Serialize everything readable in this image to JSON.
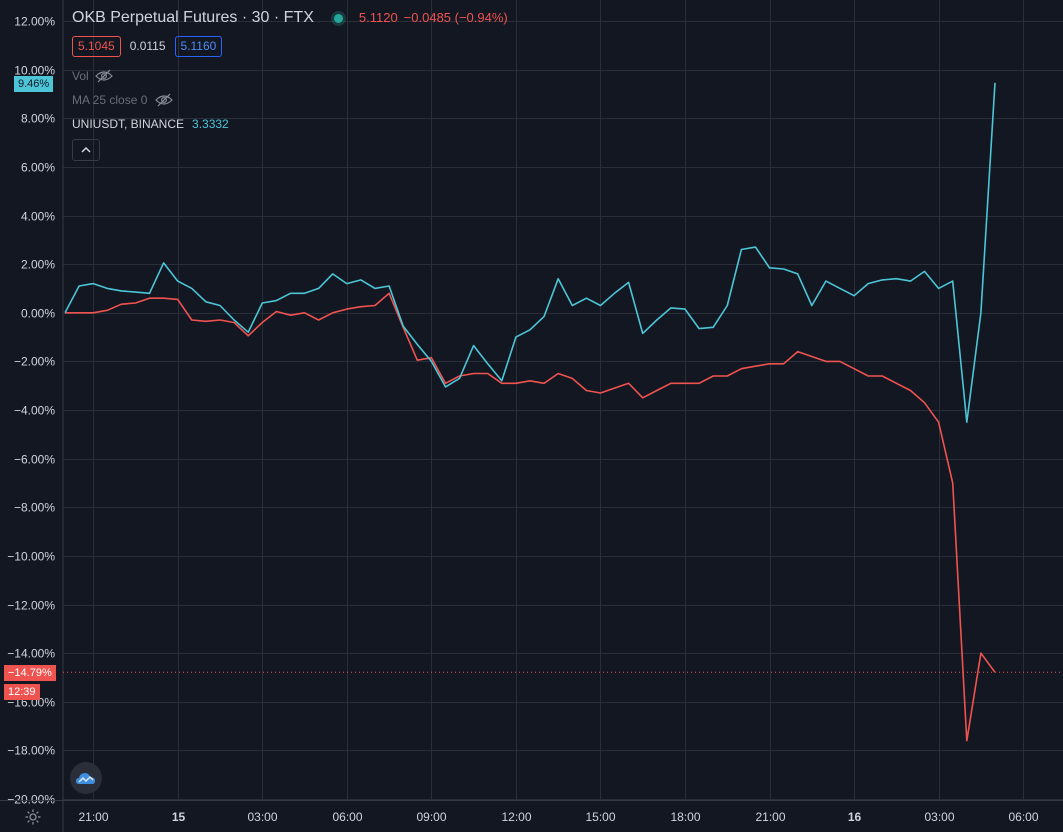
{
  "legend": {
    "title": "OKB Perpetual Futures · 30 · FTX",
    "quote_last": "5.1120",
    "quote_change": "−0.0485 (−0.94%)",
    "bid": "5.1045",
    "spread": "0.0115",
    "ask": "5.1160",
    "indicator_vol": "Vol",
    "indicator_ma": "MA 25 close 0",
    "compare_symbol": "UNIUSDT, BINANCE",
    "compare_value": "3.3332"
  },
  "price_tags": {
    "uni_pct": "9.46%",
    "okb_pct": "−14.79%",
    "countdown": "12:39"
  },
  "colors": {
    "background": "#131722",
    "grid": "#2a2e39",
    "okb": "#ef5350",
    "uni": "#4cc5d6"
  },
  "icons": {
    "status": "green-dot-icon",
    "vol_toggle": "eye-crossed-icon",
    "ma_toggle": "eye-crossed-icon",
    "collapse": "chevron-up-icon",
    "logo": "tradingview-cloud-icon",
    "settings": "gear-icon"
  },
  "chart_data": {
    "type": "line",
    "title": "OKB Perpetual Futures · 30 · FTX",
    "y_unit": "%",
    "ylim": [
      -20,
      12
    ],
    "y_ticks": [
      12,
      10,
      8,
      6,
      4,
      2,
      0,
      -2,
      -4,
      -6,
      -8,
      -10,
      -12,
      -14,
      -16,
      -18,
      -20
    ],
    "y_tick_labels": [
      "12.00%",
      "10.00%",
      "8.00%",
      "6.00%",
      "4.00%",
      "2.00%",
      "0.00%",
      "−2.00%",
      "−4.00%",
      "−6.00%",
      "−8.00%",
      "−10.00%",
      "−12.00%",
      "−14.00%",
      "−16.00%",
      "−18.00%",
      "−20.00%"
    ],
    "x_bar_range": [
      0,
      66
    ],
    "x_ticks": [
      {
        "bar": 2,
        "label": "21:00"
      },
      {
        "bar": 8,
        "label": "15"
      },
      {
        "bar": 14,
        "label": "03:00"
      },
      {
        "bar": 20,
        "label": "06:00"
      },
      {
        "bar": 26,
        "label": "09:00"
      },
      {
        "bar": 32,
        "label": "12:00"
      },
      {
        "bar": 38,
        "label": "15:00"
      },
      {
        "bar": 44,
        "label": "18:00"
      },
      {
        "bar": 50,
        "label": "21:00"
      },
      {
        "bar": 56,
        "label": "16"
      },
      {
        "bar": 62,
        "label": "03:00"
      },
      {
        "bar": 68,
        "label": "06:00"
      }
    ],
    "grid": true,
    "series": [
      {
        "name": "OKB Perpetual Futures",
        "color": "#ef5350",
        "values": [
          0.0,
          0.0,
          0.0,
          0.1,
          0.35,
          0.4,
          0.6,
          0.6,
          0.55,
          -0.3,
          -0.35,
          -0.3,
          -0.4,
          -0.95,
          -0.4,
          0.05,
          -0.1,
          0.0,
          -0.3,
          0.0,
          0.15,
          0.25,
          0.3,
          0.8,
          -0.6,
          -1.95,
          -1.85,
          -2.9,
          -2.6,
          -2.5,
          -2.5,
          -2.9,
          -2.9,
          -2.8,
          -2.9,
          -2.5,
          -2.7,
          -3.2,
          -3.3,
          -3.1,
          -2.9,
          -3.5,
          -3.2,
          -2.9,
          -2.9,
          -2.9,
          -2.6,
          -2.6,
          -2.3,
          -2.2,
          -2.1,
          -2.1,
          -1.6,
          -1.8,
          -2.0,
          -2.0,
          -2.3,
          -2.6,
          -2.6,
          -2.9,
          -3.2,
          -3.7,
          -4.5,
          -7.0,
          -17.6,
          -14.0,
          -14.79
        ]
      },
      {
        "name": "UNIUSDT, BINANCE",
        "color": "#4cc5d6",
        "values": [
          0.0,
          1.1,
          1.2,
          1.0,
          0.9,
          0.85,
          0.8,
          2.05,
          1.3,
          1.0,
          0.45,
          0.3,
          -0.3,
          -0.8,
          0.4,
          0.5,
          0.8,
          0.8,
          1.0,
          1.6,
          1.2,
          1.35,
          1.0,
          1.1,
          -0.55,
          -1.3,
          -2.0,
          -3.05,
          -2.7,
          -1.35,
          -2.1,
          -2.8,
          -1.0,
          -0.7,
          -0.15,
          1.4,
          0.3,
          0.6,
          0.3,
          0.8,
          1.25,
          -0.85,
          -0.3,
          0.2,
          0.15,
          -0.65,
          -0.6,
          0.3,
          2.6,
          2.7,
          1.85,
          1.8,
          1.6,
          0.3,
          1.3,
          1.0,
          0.7,
          1.2,
          1.35,
          1.4,
          1.3,
          1.7,
          1.0,
          1.3,
          -4.5,
          0.0,
          9.46
        ]
      }
    ]
  }
}
